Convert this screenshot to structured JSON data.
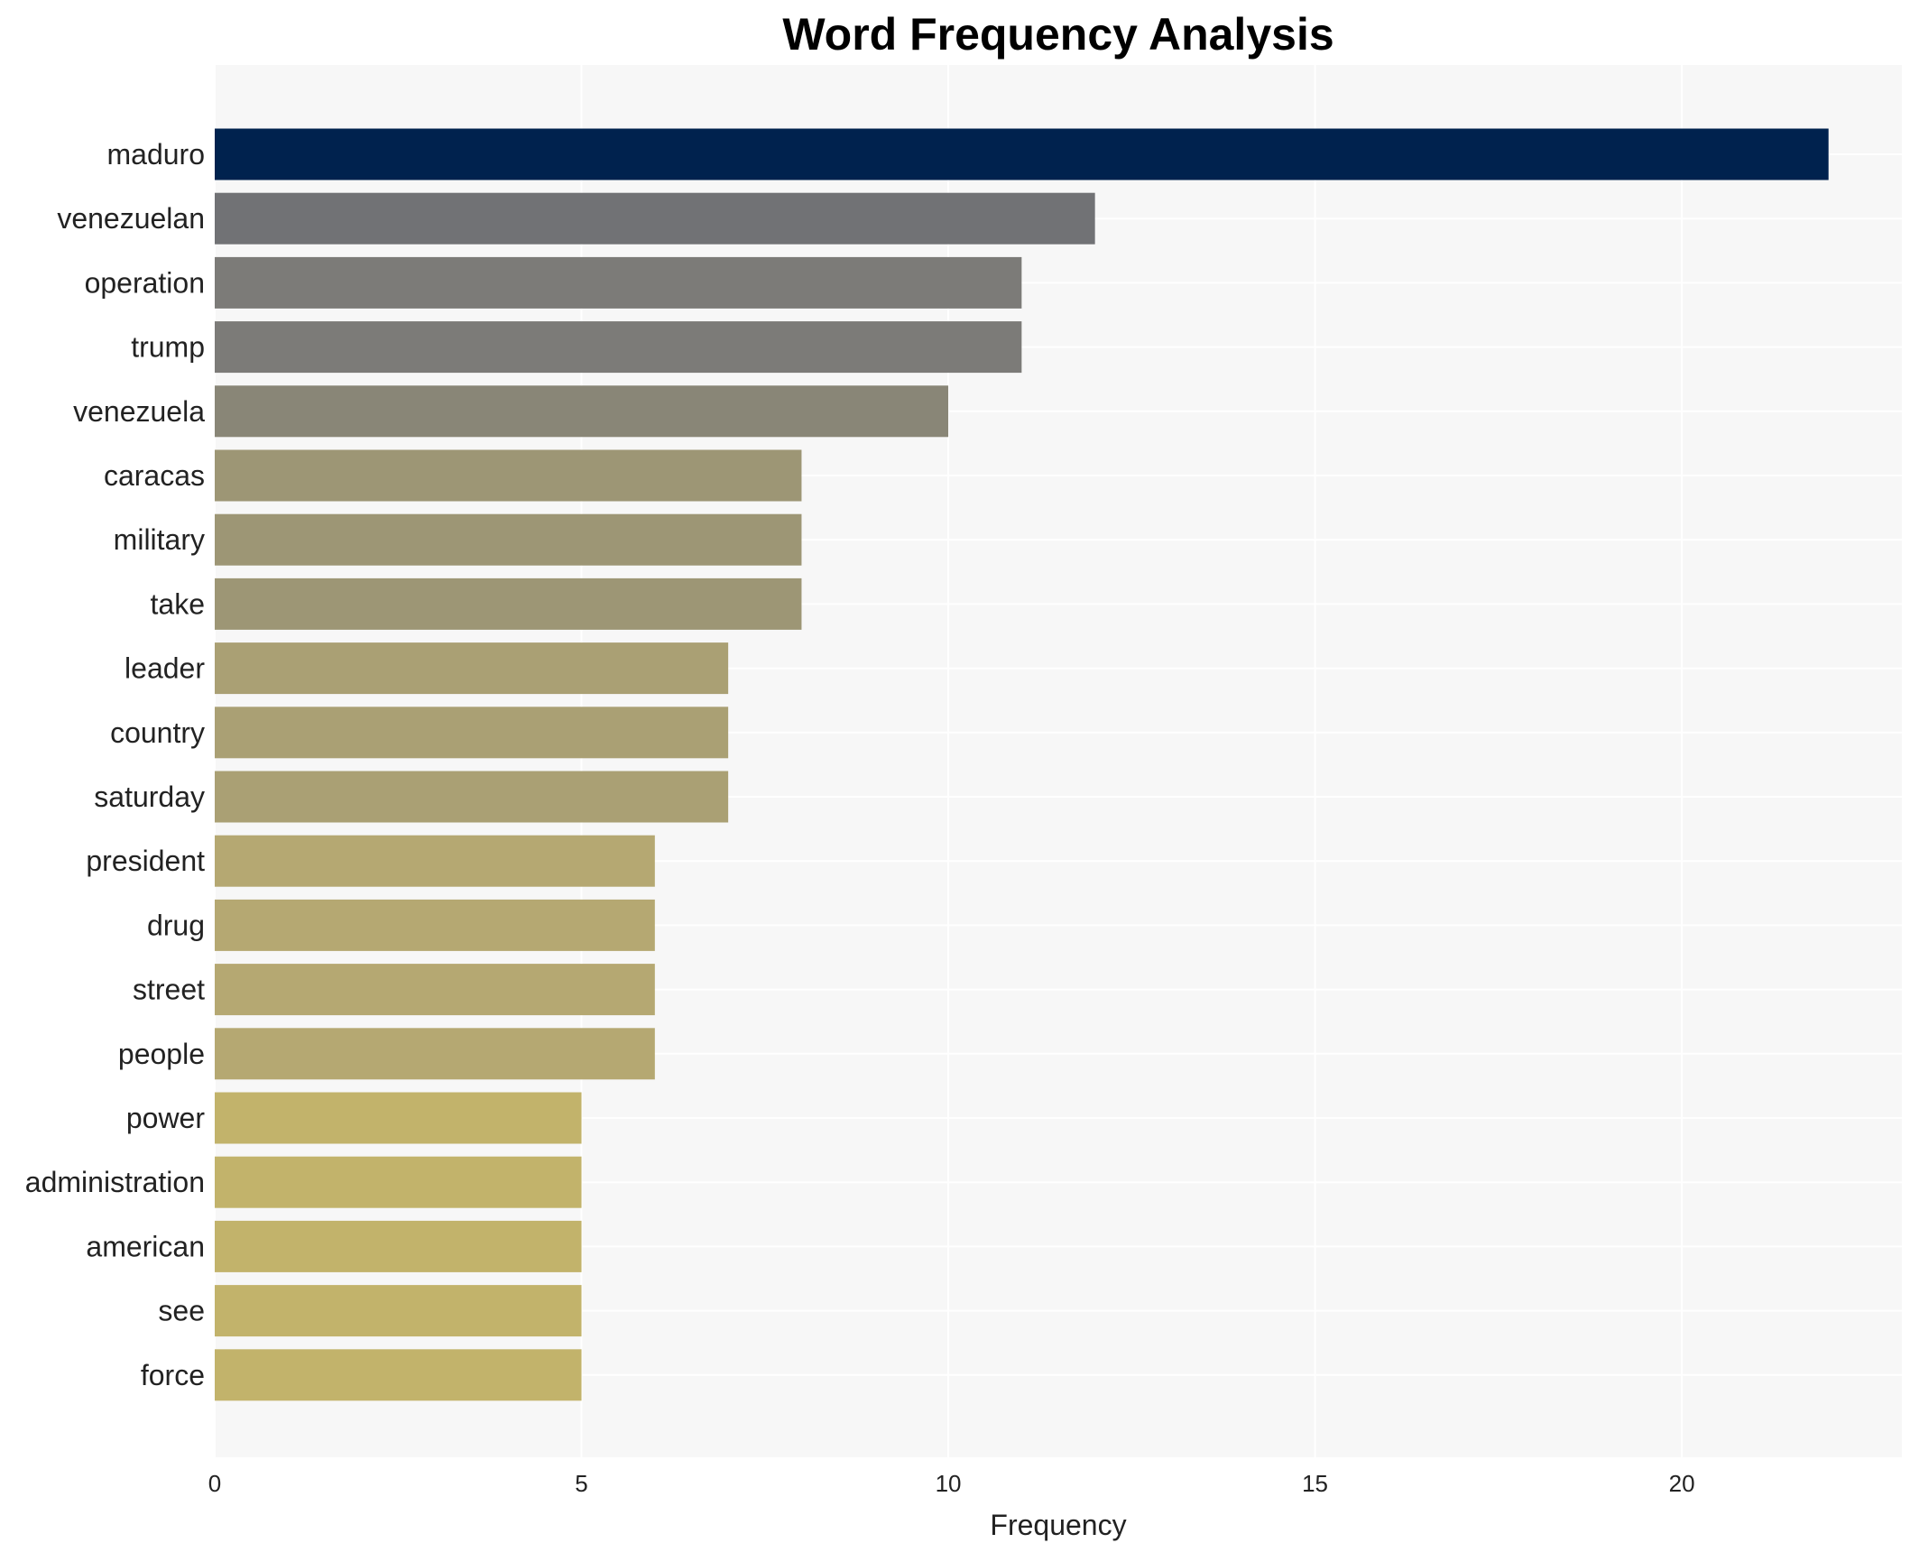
{
  "chart_data": {
    "type": "bar",
    "orientation": "horizontal",
    "title": "Word Frequency Analysis",
    "xlabel": "Frequency",
    "ylabel": "",
    "xlim": [
      0,
      23
    ],
    "xticks": [
      0,
      5,
      10,
      15,
      20
    ],
    "grid": true,
    "legend": "none",
    "categories": [
      "maduro",
      "venezuelan",
      "operation",
      "trump",
      "venezuela",
      "caracas",
      "military",
      "take",
      "leader",
      "country",
      "saturday",
      "president",
      "drug",
      "street",
      "people",
      "power",
      "administration",
      "american",
      "see",
      "force"
    ],
    "values": [
      22,
      12,
      11,
      11,
      10,
      8,
      8,
      8,
      7,
      7,
      7,
      6,
      6,
      6,
      6,
      5,
      5,
      5,
      5,
      5
    ],
    "bar_colors": [
      "#00224e",
      "#717275",
      "#7c7b78",
      "#7c7b78",
      "#898677",
      "#9d9675",
      "#9d9675",
      "#9d9675",
      "#aaa074",
      "#aaa074",
      "#aaa074",
      "#b5a872",
      "#b5a872",
      "#b5a872",
      "#b5a872",
      "#c2b36b",
      "#c2b36b",
      "#c2b36b",
      "#c2b36b",
      "#c2b36b"
    ],
    "plot_background": "#f7f7f7",
    "grid_color": "#ffffff"
  }
}
